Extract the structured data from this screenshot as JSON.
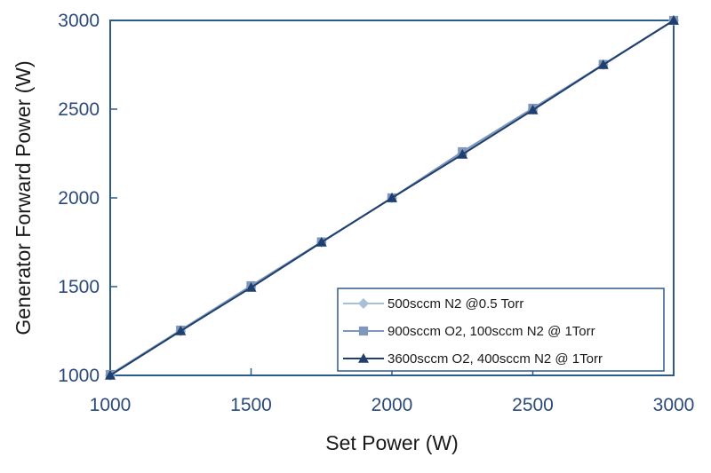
{
  "chart_data": {
    "type": "line",
    "title": "",
    "xlabel": "Set Power (W)",
    "ylabel": "Generator Forward Power (W)",
    "xlim": [
      1000,
      3000
    ],
    "ylim": [
      1000,
      3000
    ],
    "xticks": [
      "1000",
      "1500",
      "2000",
      "2500",
      "3000"
    ],
    "yticks": [
      "1000",
      "1500",
      "2000",
      "2500",
      "3000"
    ],
    "grid": false,
    "legend_position": "bottom-right",
    "series": [
      {
        "name": "500sccm N2 @0.5 Torr",
        "marker": "diamond",
        "color": "#a9bfd8",
        "x": [
          1000,
          1250,
          1500,
          1750,
          2000,
          2250,
          2500,
          2750,
          3000
        ],
        "y": [
          1000,
          1250,
          1500,
          1750,
          2000,
          2250,
          2500,
          2750,
          3000
        ]
      },
      {
        "name": "900sccm O2, 100sccm N2 @ 1Torr",
        "marker": "square",
        "color": "#7f97bb",
        "x": [
          1000,
          1250,
          1500,
          1750,
          2000,
          2250,
          2500,
          2750,
          3000
        ],
        "y": [
          1005,
          1255,
          1505,
          1752,
          2000,
          2260,
          2505,
          2752,
          3000
        ]
      },
      {
        "name": "3600sccm O2, 400sccm N2 @ 1Torr",
        "marker": "triangle",
        "color": "#1f3f6e",
        "x": [
          1000,
          1250,
          1500,
          1750,
          2000,
          2250,
          2500,
          2750,
          3000
        ],
        "y": [
          1000,
          1250,
          1495,
          1750,
          2000,
          2245,
          2495,
          2750,
          3000
        ]
      }
    ]
  }
}
